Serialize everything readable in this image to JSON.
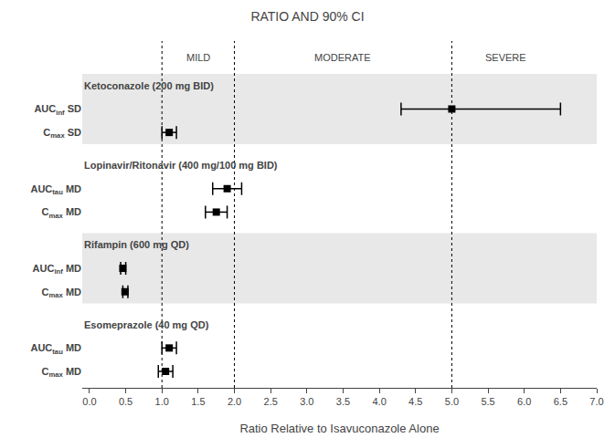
{
  "chart_data": {
    "type": "forest",
    "title": "RATIO AND 90% CI",
    "xlabel": "Ratio Relative to Isavuconazole Alone",
    "xlim": [
      -0.1,
      7.0
    ],
    "xticks": [
      {
        "value": 0.0,
        "label": "0.0"
      },
      0.5,
      {
        "value": 1.0,
        "label": "1.0"
      },
      1.5,
      {
        "value": 2.0,
        "label": "2.0"
      },
      2.5,
      {
        "value": 3.0,
        "label": "3.0"
      },
      3.5,
      {
        "value": 4.0,
        "label": "4.0"
      },
      4.5,
      {
        "value": 5.0,
        "label": "5.0"
      },
      5.5,
      {
        "value": 6.0,
        "label": "6.0"
      },
      6.5,
      {
        "value": 7.0,
        "label": "7.0"
      }
    ],
    "grid": false,
    "marker": "square",
    "color": "black",
    "reference_lines": [
      1.0,
      2.0,
      5.0
    ],
    "annotations": [
      {
        "text": "MILD",
        "x": 1.5
      },
      {
        "text": "MODERATE",
        "x": 3.5
      },
      {
        "text": "SEVERE",
        "x": 5.75
      }
    ],
    "groups": [
      {
        "label": "Ketoconazole (200 mg BID)",
        "color": "#e8e8e8",
        "rows": [
          {
            "label_main": "AUC",
            "label_sub": "inf",
            "label_suffix": " SD",
            "point": 5.0,
            "lo": 4.3,
            "hi": 6.5
          },
          {
            "label_main": "C",
            "label_sub": "max",
            "label_suffix": " SD",
            "point": 1.1,
            "lo": 1.0,
            "hi": 1.2
          }
        ]
      },
      {
        "label": "Lopinavir/Ritonavir (400 mg/100 mg BID)",
        "rows": [
          {
            "label_main": "AUC",
            "label_sub": "tau",
            "label_suffix": " MD",
            "point": 1.9,
            "lo": 1.7,
            "hi": 2.1
          },
          {
            "label_main": "C",
            "label_sub": "max",
            "label_suffix": " MD",
            "point": 1.75,
            "lo": 1.6,
            "hi": 1.9
          }
        ]
      },
      {
        "label": "Rifampin (600 mg QD)",
        "color": "#e8e8e8",
        "rows": [
          {
            "label_main": "AUC",
            "label_sub": "inf",
            "label_suffix": " MD",
            "point": 0.46,
            "lo": 0.43,
            "hi": 0.5
          },
          {
            "label_main": "C",
            "label_sub": "max",
            "label_suffix": " MD",
            "point": 0.49,
            "lo": 0.46,
            "hi": 0.53
          }
        ]
      },
      {
        "label": "Esomeprazole (40 mg QD)",
        "rows": [
          {
            "label_main": "AUC",
            "label_sub": "tau",
            "label_suffix": " MD",
            "point": 1.1,
            "lo": 1.0,
            "hi": 1.2
          },
          {
            "label_main": "C",
            "label_sub": "max",
            "label_suffix": " MD",
            "point": 1.05,
            "lo": 0.95,
            "hi": 1.15
          }
        ]
      }
    ]
  }
}
